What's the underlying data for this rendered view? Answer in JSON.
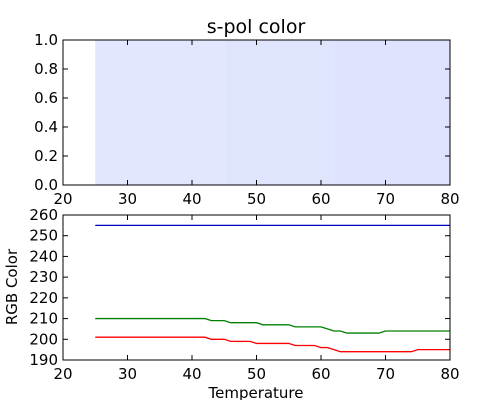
{
  "chart_data": [
    {
      "type": "color-strip",
      "title": "s-pol color",
      "xlim": [
        20,
        80
      ],
      "ylim": [
        0,
        1.0
      ],
      "xticks": [
        20,
        30,
        40,
        50,
        60,
        70,
        80
      ],
      "yticks": [
        0.0,
        0.2,
        0.4,
        0.6,
        0.8,
        1.0
      ],
      "xtick_labels": [
        "20",
        "30",
        "40",
        "50",
        "60",
        "70",
        "80"
      ],
      "ytick_labels": [
        "0.0",
        "0.2",
        "0.4",
        "0.6",
        "0.8",
        "1.0"
      ],
      "band_x_start": 25,
      "band_x_end": 80,
      "colors": [
        {
          "x_start": 25,
          "x_end": 45,
          "color": "#e2e6fe"
        },
        {
          "x_start": 45,
          "x_end": 62,
          "color": "#e0e5fe"
        },
        {
          "x_start": 62,
          "x_end": 80,
          "color": "#dfe3fe"
        }
      ]
    },
    {
      "type": "line",
      "title": "",
      "xlabel": "Temperature",
      "ylabel": "RGB Color",
      "xlim": [
        20,
        80
      ],
      "ylim": [
        190,
        260
      ],
      "xticks": [
        20,
        30,
        40,
        50,
        60,
        70,
        80
      ],
      "yticks": [
        190,
        200,
        210,
        220,
        230,
        240,
        250,
        260
      ],
      "xtick_labels": [
        "20",
        "30",
        "40",
        "50",
        "60",
        "70",
        "80"
      ],
      "ytick_labels": [
        "190",
        "200",
        "210",
        "220",
        "230",
        "240",
        "250",
        "260"
      ],
      "grid": false,
      "series": [
        {
          "color": "#0000bf",
          "x": [
            25,
            80
          ],
          "y": [
            255,
            255
          ]
        },
        {
          "color": "#008000",
          "x": [
            25,
            42,
            43,
            44,
            45,
            46,
            49,
            50,
            51,
            55,
            56,
            60,
            61,
            62,
            63,
            64,
            69,
            70,
            80
          ],
          "y": [
            210,
            210,
            209,
            209,
            209,
            208,
            208,
            208,
            207,
            207,
            206,
            206,
            205,
            204,
            204,
            203,
            203,
            204,
            204
          ]
        },
        {
          "color": "#ff0000",
          "x": [
            25,
            42,
            43,
            45,
            46,
            49,
            50,
            55,
            56,
            59,
            60,
            61,
            62,
            63,
            64,
            74,
            75,
            80
          ],
          "y": [
            201,
            201,
            200,
            200,
            199,
            199,
            198,
            198,
            197,
            197,
            196,
            196,
            195,
            194,
            194,
            194,
            195,
            195
          ]
        }
      ]
    }
  ]
}
